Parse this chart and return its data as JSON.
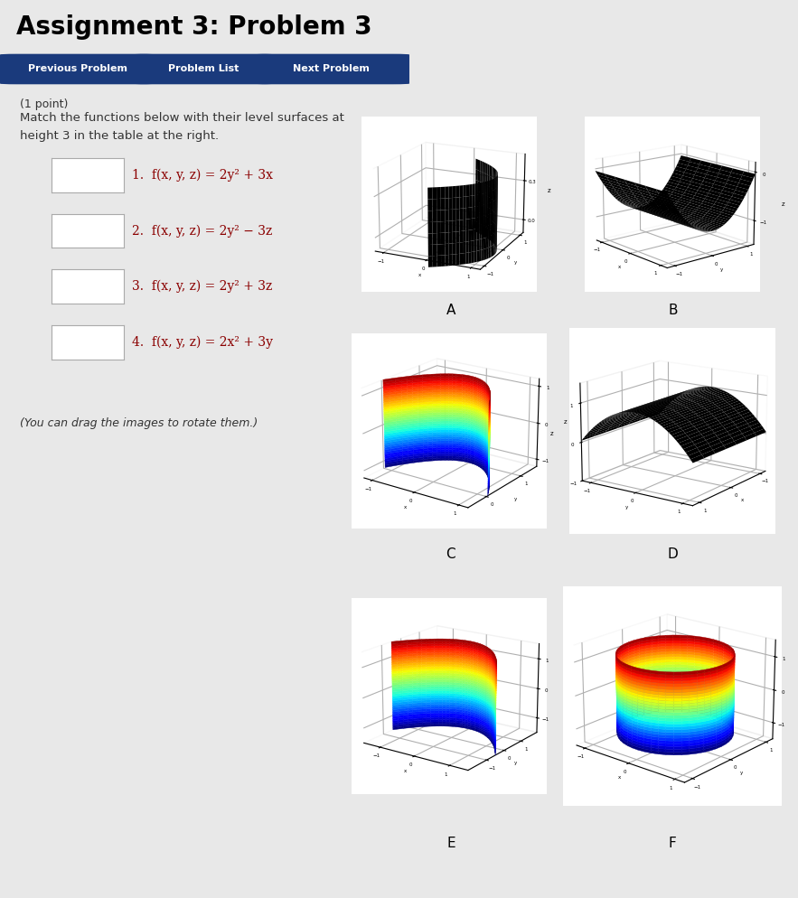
{
  "title": "Assignment 3: Problem 3",
  "bg_color": "#e8e8e8",
  "content_bg": "#f5f5f5",
  "button_color": "#1a3a7c",
  "button_texts": [
    "Previous Problem",
    "Problem List",
    "Next Problem"
  ],
  "point_text": "(1 point)",
  "problem_line1": "Match the functions below with their level surfaces at",
  "problem_line2": "height 3 in the table at the right.",
  "functions": [
    "1.  f(x, y, z) = 2y² + 3x",
    "2.  f(x, y, z) = 2y² − 3z",
    "3.  f(x, y, z) = 2y² + 3z",
    "4.  f(x, y, z) = 2x² + 3y"
  ],
  "drag_note": "(You can drag the images to rotate them.)",
  "panel_labels": [
    "A",
    "B",
    "C",
    "D",
    "E",
    "F"
  ]
}
